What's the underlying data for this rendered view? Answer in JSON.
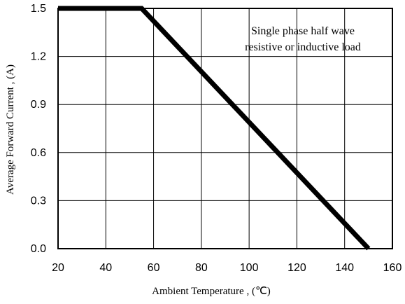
{
  "chart_data": {
    "type": "line",
    "xlabel": "Ambient Temperature , (℃)",
    "ylabel": "Average Forward Current , (A)",
    "xlim": [
      20,
      160
    ],
    "ylim": [
      0.0,
      1.5
    ],
    "x_ticks": [
      "20",
      "40",
      "60",
      "80",
      "100",
      "120",
      "140",
      "160"
    ],
    "y_ticks": [
      "0.0",
      "0.3",
      "0.6",
      "0.9",
      "1.2",
      "1.5"
    ],
    "x_tick_values": [
      20,
      40,
      60,
      80,
      100,
      120,
      140,
      160
    ],
    "y_tick_values": [
      0.0,
      0.3,
      0.6,
      0.9,
      1.2,
      1.5
    ],
    "grid": true,
    "annotation": [
      "Single phase half wave",
      "resistive or inductive load"
    ],
    "series": [
      {
        "x": [
          20,
          55,
          150
        ],
        "y": [
          1.5,
          1.5,
          0.0
        ]
      }
    ]
  }
}
